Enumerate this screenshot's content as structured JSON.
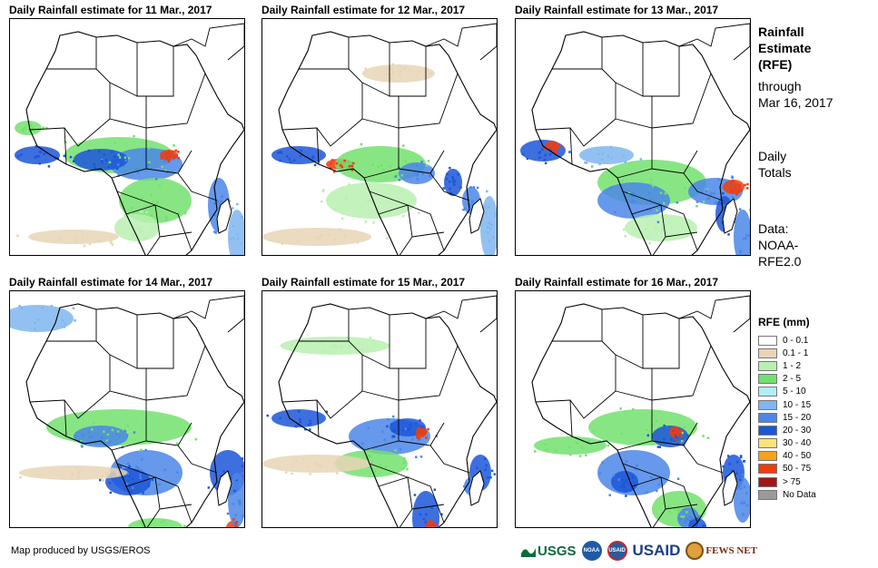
{
  "panels": [
    {
      "title": "Daily Rainfall estimate for 11 Mar., 2017"
    },
    {
      "title": "Daily Rainfall estimate for 12 Mar., 2017"
    },
    {
      "title": "Daily Rainfall estimate for 13 Mar., 2017"
    },
    {
      "title": "Daily Rainfall estimate for 14 Mar., 2017"
    },
    {
      "title": "Daily Rainfall estimate for 15 Mar., 2017"
    },
    {
      "title": "Daily Rainfall estimate for 16 Mar., 2017"
    }
  ],
  "sidebar": {
    "title_lines": [
      "Rainfall",
      "Estimate",
      "(RFE)"
    ],
    "through_lines": [
      "through",
      "Mar 16, 2017"
    ],
    "totals_lines": [
      "Daily",
      "Totals"
    ],
    "data_lines": [
      "Data:",
      "NOAA-",
      "RFE2.0"
    ]
  },
  "legend": {
    "title": "RFE (mm)",
    "items": [
      {
        "label": "0 - 0.1",
        "color": "#ffffff"
      },
      {
        "label": "0.1 - 1",
        "color": "#e8d5b5"
      },
      {
        "label": "1 - 2",
        "color": "#b9f0b0"
      },
      {
        "label": "2 - 5",
        "color": "#73e06e"
      },
      {
        "label": "5 - 10",
        "color": "#b3ecf5"
      },
      {
        "label": "10 - 15",
        "color": "#7fb6ef"
      },
      {
        "label": "15 - 20",
        "color": "#4b86e8"
      },
      {
        "label": "20 - 30",
        "color": "#1c56d8"
      },
      {
        "label": "30 - 40",
        "color": "#fbe37a"
      },
      {
        "label": "40 - 50",
        "color": "#f3a21c"
      },
      {
        "label": "50 - 75",
        "color": "#f03c0c"
      },
      {
        "label": "> 75",
        "color": "#a41616"
      },
      {
        "label": "No Data",
        "color": "#9a9a9a"
      }
    ]
  },
  "credit": "Map produced by USGS/EROS",
  "logos": {
    "usgs": "USGS",
    "noaa": "NOAA",
    "usaid_seal": "USAID",
    "usaid": "USAID",
    "fewsnet": "FEWS NET"
  },
  "icons": {
    "usgs": "usgs-logo-icon",
    "noaa": "noaa-seal-icon",
    "usaid": "usaid-seal-icon",
    "fewsnet": "fewsnet-logo-icon"
  },
  "rain_patterns": [
    {
      "blobs": [
        [
          120,
          150,
          60,
          20,
          "#73e06e"
        ],
        [
          150,
          160,
          40,
          18,
          "#4b86e8"
        ],
        [
          100,
          155,
          30,
          12,
          "#1c56d8"
        ],
        [
          175,
          150,
          10,
          6,
          "#f03c0c"
        ],
        [
          160,
          200,
          40,
          25,
          "#73e06e"
        ],
        [
          230,
          205,
          12,
          30,
          "#4b86e8"
        ],
        [
          235,
          210,
          5,
          8,
          "#f03c0c"
        ],
        [
          30,
          150,
          25,
          10,
          "#1c56d8"
        ],
        [
          20,
          120,
          15,
          8,
          "#73e06e"
        ],
        [
          70,
          240,
          50,
          8,
          "#e8d5b5"
        ],
        [
          250,
          240,
          10,
          30,
          "#7fb6ef"
        ],
        [
          140,
          230,
          25,
          15,
          "#b9f0b0"
        ]
      ]
    },
    {
      "blobs": [
        [
          40,
          150,
          30,
          10,
          "#1c56d8"
        ],
        [
          85,
          160,
          15,
          6,
          "#f03c0c"
        ],
        [
          130,
          160,
          50,
          20,
          "#73e06e"
        ],
        [
          170,
          170,
          20,
          12,
          "#4b86e8"
        ],
        [
          120,
          200,
          50,
          20,
          "#b9f0b0"
        ],
        [
          210,
          180,
          10,
          15,
          "#1c56d8"
        ],
        [
          230,
          200,
          10,
          15,
          "#4b86e8"
        ],
        [
          250,
          230,
          10,
          35,
          "#7fb6ef"
        ],
        [
          60,
          240,
          60,
          10,
          "#e8d5b5"
        ],
        [
          150,
          60,
          40,
          10,
          "#e8d5b5"
        ]
      ]
    },
    {
      "blobs": [
        [
          30,
          145,
          25,
          12,
          "#1c56d8"
        ],
        [
          40,
          140,
          8,
          6,
          "#f03c0c"
        ],
        [
          100,
          150,
          30,
          10,
          "#7fb6ef"
        ],
        [
          150,
          180,
          60,
          25,
          "#73e06e"
        ],
        [
          130,
          200,
          40,
          20,
          "#4b86e8"
        ],
        [
          220,
          190,
          30,
          15,
          "#4b86e8"
        ],
        [
          240,
          185,
          12,
          8,
          "#f03c0c"
        ],
        [
          230,
          215,
          10,
          20,
          "#1c56d8"
        ],
        [
          250,
          240,
          10,
          30,
          "#4b86e8"
        ],
        [
          160,
          230,
          40,
          15,
          "#b9f0b0"
        ]
      ]
    },
    {
      "blobs": [
        [
          120,
          150,
          80,
          20,
          "#73e06e"
        ],
        [
          100,
          160,
          30,
          12,
          "#4b86e8"
        ],
        [
          150,
          200,
          40,
          25,
          "#4b86e8"
        ],
        [
          130,
          210,
          25,
          15,
          "#1c56d8"
        ],
        [
          240,
          200,
          20,
          25,
          "#1c56d8"
        ],
        [
          245,
          265,
          8,
          12,
          "#f03c0c"
        ],
        [
          250,
          230,
          10,
          30,
          "#4b86e8"
        ],
        [
          180,
          270,
          20,
          8,
          "#4b86e8"
        ],
        [
          160,
          260,
          30,
          10,
          "#73e06e"
        ],
        [
          70,
          200,
          60,
          8,
          "#e8d5b5"
        ],
        [
          30,
          30,
          40,
          15,
          "#7fb6ef"
        ]
      ]
    },
    {
      "blobs": [
        [
          40,
          140,
          30,
          10,
          "#1c56d8"
        ],
        [
          140,
          160,
          45,
          20,
          "#4b86e8"
        ],
        [
          160,
          150,
          20,
          10,
          "#1c56d8"
        ],
        [
          175,
          155,
          6,
          6,
          "#f03c0c"
        ],
        [
          120,
          190,
          40,
          15,
          "#73e06e"
        ],
        [
          240,
          200,
          12,
          20,
          "#1c56d8"
        ],
        [
          230,
          215,
          8,
          10,
          "#4b86e8"
        ],
        [
          180,
          250,
          15,
          30,
          "#1c56d8"
        ],
        [
          185,
          260,
          6,
          8,
          "#f03c0c"
        ],
        [
          80,
          60,
          60,
          10,
          "#b9f0b0"
        ],
        [
          60,
          190,
          60,
          10,
          "#e8d5b5"
        ]
      ]
    },
    {
      "blobs": [
        [
          140,
          150,
          60,
          20,
          "#73e06e"
        ],
        [
          170,
          160,
          20,
          12,
          "#1c56d8"
        ],
        [
          175,
          155,
          6,
          6,
          "#f03c0c"
        ],
        [
          130,
          200,
          40,
          25,
          "#4b86e8"
        ],
        [
          120,
          210,
          15,
          12,
          "#1c56d8"
        ],
        [
          240,
          200,
          12,
          20,
          "#1c56d8"
        ],
        [
          180,
          240,
          30,
          20,
          "#73e06e"
        ],
        [
          190,
          250,
          12,
          12,
          "#4b86e8"
        ],
        [
          250,
          230,
          10,
          25,
          "#4b86e8"
        ],
        [
          60,
          170,
          40,
          10,
          "#73e06e"
        ],
        [
          200,
          260,
          10,
          10,
          "#1c56d8"
        ]
      ]
    }
  ]
}
